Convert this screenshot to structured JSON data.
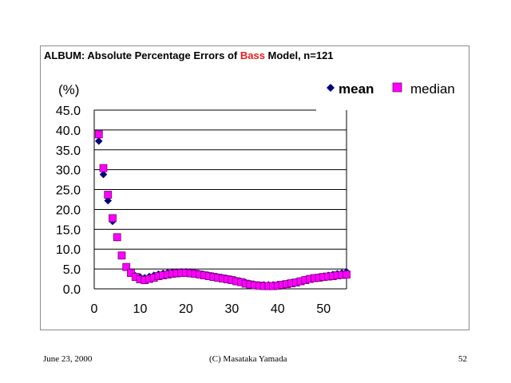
{
  "footer": {
    "date": "June 23, 2000",
    "copyright": "(C) Masataka Yamada",
    "page": "52"
  },
  "chart_data": {
    "type": "scatter",
    "title_parts": [
      {
        "text": "ALBUM: Absolute Percentage Errors of ",
        "color": "#000000"
      },
      {
        "text": "Bass",
        "color": "#ee1c1c"
      },
      {
        "text": " Model, n=121",
        "color": "#000000"
      }
    ],
    "ylabel": "(%)",
    "xlabel": "",
    "xlim": [
      0,
      55
    ],
    "ylim": [
      0,
      45
    ],
    "x_ticks": [
      0,
      10,
      20,
      30,
      40,
      50
    ],
    "y_ticks": [
      "0.0",
      "5.0",
      "10.0",
      "15.0",
      "20.0",
      "25.0",
      "30.0",
      "35.0",
      "40.0",
      "45.0"
    ],
    "grid": "horizontal",
    "legend_position": "top-right",
    "series": [
      {
        "name": "mean",
        "marker": "diamond",
        "color": "#00007a",
        "x": [
          1,
          2,
          3,
          4,
          5,
          6,
          7,
          8,
          9,
          10,
          11,
          12,
          13,
          14,
          15,
          16,
          17,
          18,
          19,
          20,
          21,
          22,
          23,
          24,
          25,
          26,
          27,
          28,
          29,
          30,
          31,
          32,
          33,
          34,
          35,
          36,
          37,
          38,
          39,
          40,
          41,
          42,
          43,
          44,
          45,
          46,
          47,
          48,
          49,
          50,
          51,
          52,
          53,
          54,
          55
        ],
        "y": [
          37.2,
          28.8,
          22.2,
          17.0,
          12.9,
          8.3,
          5.6,
          4.0,
          3.3,
          3.0,
          2.8,
          3.1,
          3.4,
          3.7,
          3.9,
          4.1,
          4.2,
          4.2,
          4.3,
          4.3,
          4.2,
          4.0,
          3.8,
          3.6,
          3.4,
          3.2,
          3.0,
          2.8,
          2.6,
          2.4,
          2.1,
          1.9,
          1.6,
          1.3,
          1.1,
          1.0,
          1.0,
          1.0,
          1.0,
          1.1,
          1.2,
          1.4,
          1.6,
          1.8,
          2.0,
          2.3,
          2.6,
          2.8,
          3.0,
          3.2,
          3.4,
          3.6,
          3.8,
          4.0,
          4.3
        ]
      },
      {
        "name": "median",
        "marker": "square",
        "color": "#ff00ff",
        "x": [
          1,
          2,
          3,
          4,
          5,
          6,
          7,
          8,
          9,
          10,
          11,
          12,
          13,
          14,
          15,
          16,
          17,
          18,
          19,
          20,
          21,
          22,
          23,
          24,
          25,
          26,
          27,
          28,
          29,
          30,
          31,
          32,
          33,
          34,
          35,
          36,
          37,
          38,
          39,
          40,
          41,
          42,
          43,
          44,
          45,
          46,
          47,
          48,
          49,
          50,
          51,
          52,
          53,
          54,
          55
        ],
        "y": [
          38.9,
          30.4,
          23.7,
          17.8,
          13.0,
          8.4,
          5.5,
          4.0,
          3.0,
          2.4,
          2.2,
          2.5,
          2.8,
          3.2,
          3.4,
          3.6,
          3.8,
          3.9,
          4.0,
          4.0,
          3.9,
          3.8,
          3.6,
          3.4,
          3.2,
          3.0,
          2.8,
          2.6,
          2.4,
          2.2,
          1.9,
          1.7,
          1.3,
          1.1,
          0.9,
          0.8,
          0.7,
          0.7,
          0.7,
          0.8,
          1.0,
          1.2,
          1.4,
          1.6,
          1.9,
          2.2,
          2.5,
          2.7,
          2.8,
          3.0,
          3.1,
          3.2,
          3.4,
          3.5,
          3.6
        ]
      }
    ]
  }
}
